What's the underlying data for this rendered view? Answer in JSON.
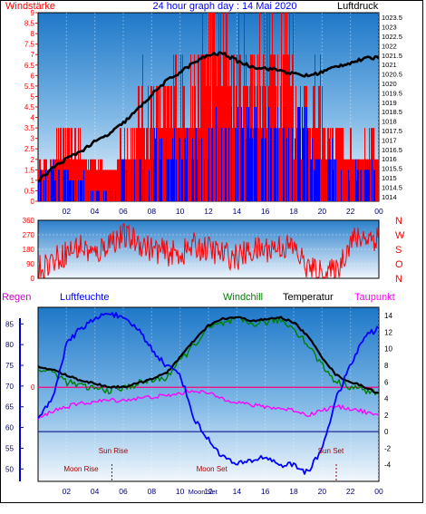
{
  "header": {
    "left": "Windstärke",
    "title": "24 hour graph day : 14 Mai 2020",
    "right": "Luftdruck"
  },
  "legend": {
    "regen": "Regen",
    "luftfeuchte": "Luftfeuchte",
    "windchill": "Windchill",
    "temperatur": "Temperatur",
    "taupunkt": "Taupunkt"
  },
  "colors": {
    "red": "#ff0000",
    "blue": "#0000ff",
    "black": "#000000",
    "green": "#008000",
    "magenta": "#ff00ff",
    "navy": "#0000aa",
    "darkred": "#aa0000"
  },
  "chart_data": [
    {
      "type": "bar",
      "panel": "wind",
      "x_ticks": [
        "02",
        "04",
        "06",
        "08",
        "10",
        "12",
        "14",
        "16",
        "18",
        "20",
        "22",
        "00"
      ],
      "x_range_hours": [
        0,
        24
      ],
      "left_ylim": [
        0,
        9
      ],
      "left_ticks": [
        "0",
        "0.5",
        "1",
        "1.5",
        "2",
        "2.5",
        "3",
        "3.5",
        "4",
        "4.5",
        "5",
        "5.5",
        "6",
        "6.5",
        "7",
        "7.5",
        "8",
        "8.5",
        "9"
      ],
      "right_ylim": [
        1013.75,
        1023.75
      ],
      "right_ticks": [
        "1014",
        "1014.5",
        "1015",
        "1015.5",
        "1016",
        "1016.5",
        "1017",
        "1017.5",
        "1018",
        "1018.5",
        "1019",
        "1019.5",
        "1020",
        "1020.5",
        "1021",
        "1021.5",
        "1022",
        "1022.5",
        "1023",
        "1023.5"
      ],
      "series": [
        {
          "name": "Windstärke",
          "color": "#ff0000",
          "segments": [
            {
              "from_hour": 0.0,
              "to_hour": 1.0,
              "level": 2.0
            },
            {
              "from_hour": 1.0,
              "to_hour": 3.0,
              "level": 3.5
            },
            {
              "from_hour": 3.0,
              "to_hour": 4.5,
              "level": 2.5
            },
            {
              "from_hour": 4.5,
              "to_hour": 5.5,
              "level": 1.0
            },
            {
              "from_hour": 5.5,
              "to_hour": 7.0,
              "level": 3.5
            },
            {
              "from_hour": 7.0,
              "to_hour": 9.5,
              "level": 5.5
            },
            {
              "from_hour": 9.5,
              "to_hour": 11.5,
              "level": 7.0
            },
            {
              "from_hour": 11.5,
              "to_hour": 13.5,
              "level": 9.0
            },
            {
              "from_hour": 13.5,
              "to_hour": 15.5,
              "level": 7.5
            },
            {
              "from_hour": 15.5,
              "to_hour": 18.0,
              "level": 9.0
            },
            {
              "from_hour": 18.0,
              "to_hour": 20.0,
              "level": 5.5
            },
            {
              "from_hour": 20.0,
              "to_hour": 21.5,
              "level": 4.0
            },
            {
              "from_hour": 21.5,
              "to_hour": 24.0,
              "level": 3.0
            }
          ]
        },
        {
          "name": "Wind Durchschnitt",
          "color": "#0000ff",
          "segments": [
            {
              "from_hour": 0.0,
              "to_hour": 3.5,
              "level": 1.5
            },
            {
              "from_hour": 3.5,
              "to_hour": 4.5,
              "level": 0.5
            },
            {
              "from_hour": 4.5,
              "to_hour": 5.5,
              "level": 0.2
            },
            {
              "from_hour": 5.5,
              "to_hour": 8.0,
              "level": 2.0
            },
            {
              "from_hour": 8.0,
              "to_hour": 12.0,
              "level": 3.0
            },
            {
              "from_hour": 12.0,
              "to_hour": 19.0,
              "level": 4.5
            },
            {
              "from_hour": 19.0,
              "to_hour": 21.0,
              "level": 2.5
            },
            {
              "from_hour": 21.0,
              "to_hour": 22.5,
              "level": 1.5
            },
            {
              "from_hour": 22.5,
              "to_hour": 24.0,
              "level": 2.0
            }
          ]
        },
        {
          "name": "Luftdruck",
          "color": "#000000",
          "axis": "right",
          "x": [
            0,
            1,
            2,
            3,
            4,
            5,
            6,
            7,
            8,
            9,
            10,
            11,
            12,
            13,
            14,
            15,
            16,
            17,
            18,
            19,
            20,
            21,
            22,
            23,
            24
          ],
          "values": [
            1014.8,
            1015.5,
            1016.0,
            1016.4,
            1016.9,
            1017.3,
            1017.9,
            1018.6,
            1019.4,
            1020.1,
            1020.6,
            1021.1,
            1021.5,
            1021.6,
            1021.2,
            1020.9,
            1020.8,
            1020.7,
            1020.5,
            1020.4,
            1020.6,
            1020.9,
            1021.1,
            1021.3,
            1021.4
          ]
        }
      ]
    },
    {
      "type": "line",
      "panel": "wind-direction",
      "x_range_hours": [
        0,
        24
      ],
      "ylim": [
        0,
        360
      ],
      "y_ticks": [
        "0",
        "90",
        "180",
        "270",
        "360"
      ],
      "right_labels": [
        "N",
        "W",
        "S",
        "O",
        "N"
      ],
      "series": [
        {
          "name": "Windrichtung",
          "color": "#ff0000",
          "x": [
            0,
            1,
            2,
            3,
            4,
            5,
            6,
            7,
            8,
            9,
            10,
            11,
            12,
            13,
            14,
            15,
            16,
            17,
            18,
            19,
            20,
            21,
            22,
            23,
            24
          ],
          "values": [
            60,
            110,
            160,
            200,
            140,
            230,
            260,
            230,
            180,
            160,
            150,
            200,
            180,
            150,
            130,
            170,
            180,
            200,
            190,
            60,
            30,
            40,
            230,
            260,
            250
          ]
        }
      ]
    },
    {
      "type": "line",
      "panel": "temperature-humidity",
      "x_ticks": [
        "02",
        "04",
        "06",
        "08",
        "10",
        "12",
        "14",
        "16",
        "18",
        "20",
        "22",
        "00"
      ],
      "x_range_hours": [
        0,
        24
      ],
      "left_ylim": [
        47,
        89
      ],
      "left_ticks": [
        "50",
        "55",
        "60",
        "65",
        "70",
        "75",
        "80",
        "85"
      ],
      "right_ylim": [
        -6,
        15
      ],
      "right_ticks": [
        "-4",
        "-2",
        "0",
        "2",
        "4",
        "6",
        "8",
        "10",
        "12",
        "14"
      ],
      "markers": {
        "zero_left": "0",
        "sun_rise": "Sun Rise",
        "sun_set": "Sun Set",
        "moon_rise": "Moon Rise",
        "moon_set": "Moon Set",
        "moonset_tick": "Moon Set",
        "sun_rise_hour": 5.3,
        "sun_set_hour": 21.0,
        "moon_rise_hour": 5.2,
        "moon_set_hour": 11.6
      },
      "series": [
        {
          "name": "Luftfeuchte",
          "color": "#0000ff",
          "axis": "left",
          "x": [
            0,
            1,
            2,
            3,
            4,
            5,
            6,
            7,
            8,
            9,
            10,
            11,
            12,
            13,
            14,
            15,
            16,
            17,
            18,
            19,
            20,
            21,
            22,
            23,
            24
          ],
          "values": [
            62,
            67,
            80,
            84,
            86,
            88,
            86,
            84,
            79,
            75,
            73,
            62,
            57,
            53,
            51,
            52,
            53,
            51,
            51,
            49,
            55,
            67,
            75,
            82,
            84
          ]
        },
        {
          "name": "Windchill",
          "color": "#008000",
          "axis": "right",
          "x": [
            0,
            1,
            2,
            3,
            4,
            5,
            6,
            7,
            8,
            9,
            10,
            11,
            12,
            13,
            14,
            15,
            16,
            17,
            18,
            19,
            20,
            21,
            22,
            23,
            24
          ],
          "values": [
            7.5,
            7.2,
            6.0,
            5.5,
            5.2,
            5.0,
            5.2,
            5.8,
            6.2,
            6.5,
            8.5,
            10.5,
            12.5,
            13.0,
            13.5,
            13.0,
            13.2,
            13.5,
            12.5,
            10.5,
            8.0,
            6.0,
            5.5,
            5.0,
            4.5
          ]
        },
        {
          "name": "Temperatur",
          "color": "#000000",
          "axis": "right",
          "x": [
            0,
            1,
            2,
            3,
            4,
            5,
            6,
            7,
            8,
            9,
            10,
            11,
            12,
            13,
            14,
            15,
            16,
            17,
            18,
            19,
            20,
            21,
            22,
            23,
            24
          ],
          "values": [
            7.8,
            7.5,
            6.8,
            6.2,
            5.8,
            5.4,
            5.4,
            5.8,
            6.4,
            7.0,
            9.0,
            11.0,
            12.8,
            13.6,
            13.8,
            13.4,
            13.5,
            13.8,
            13.2,
            11.5,
            9.0,
            6.8,
            6.0,
            5.4,
            4.6
          ]
        },
        {
          "name": "Taupunkt",
          "color": "#ff00ff",
          "axis": "right",
          "x": [
            0,
            1,
            2,
            3,
            4,
            5,
            6,
            7,
            8,
            9,
            10,
            11,
            12,
            13,
            14,
            15,
            16,
            17,
            18,
            19,
            20,
            21,
            22,
            23,
            24
          ],
          "values": [
            1.5,
            2.5,
            3.0,
            3.4,
            3.6,
            3.8,
            3.8,
            4.0,
            4.2,
            4.3,
            4.6,
            5.0,
            4.6,
            4.0,
            3.6,
            3.2,
            3.0,
            2.8,
            2.6,
            2.0,
            2.6,
            3.0,
            2.8,
            2.4,
            1.8
          ]
        }
      ]
    }
  ]
}
